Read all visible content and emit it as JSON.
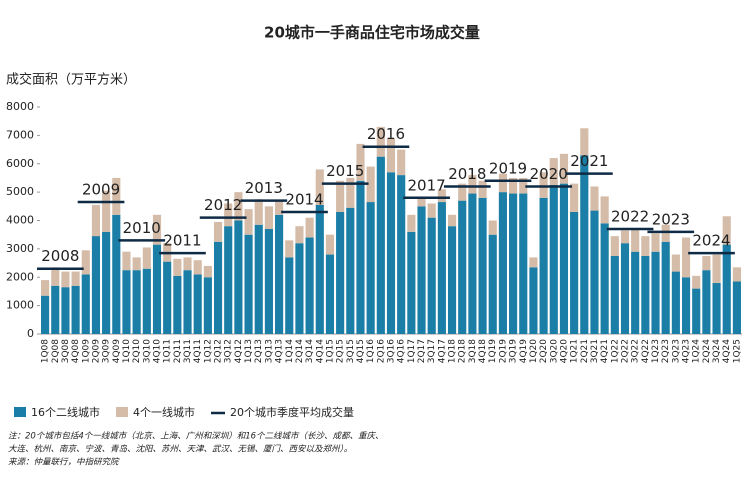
{
  "chart_data": {
    "type": "bar",
    "stacked": true,
    "title": "20城市一手商品住宅市场成交量",
    "y_label": "成交面积（万平方米）",
    "categories": [
      "1Q08",
      "2Q08",
      "3Q08",
      "4Q08",
      "1Q09",
      "2Q09",
      "3Q09",
      "4Q09",
      "1Q10",
      "2Q10",
      "3Q10",
      "4Q10",
      "1Q11",
      "2Q11",
      "3Q11",
      "4Q11",
      "1Q12",
      "2Q12",
      "3Q12",
      "4Q12",
      "1Q13",
      "2Q13",
      "3Q13",
      "4Q13",
      "1Q14",
      "2Q14",
      "3Q14",
      "4Q14",
      "1Q15",
      "2Q15",
      "3Q15",
      "4Q15",
      "1Q16",
      "2Q16",
      "3Q16",
      "4Q16",
      "1Q17",
      "2Q17",
      "3Q17",
      "4Q17",
      "1Q18",
      "2Q18",
      "3Q18",
      "4Q18",
      "1Q19",
      "2Q19",
      "3Q19",
      "4Q19",
      "1Q20",
      "2Q20",
      "3Q20",
      "4Q20",
      "1Q21",
      "2Q21",
      "3Q21",
      "4Q21",
      "1Q22",
      "2Q22",
      "3Q22",
      "4Q22",
      "1Q23",
      "2Q23",
      "3Q23",
      "4Q23",
      "1Q24",
      "2Q24",
      "3Q24",
      "4Q24",
      "1Q25"
    ],
    "series": [
      {
        "name": "16个二线城市",
        "color": "#1a7ea6",
        "values": [
          1350,
          1700,
          1650,
          1700,
          2100,
          3450,
          3600,
          4200,
          2250,
          2250,
          2300,
          3150,
          2550,
          2050,
          2250,
          2100,
          2000,
          3250,
          3800,
          4000,
          3500,
          3850,
          3700,
          4200,
          2700,
          3200,
          3400,
          4550,
          2800,
          4300,
          4450,
          5400,
          4650,
          6250,
          5700,
          5600,
          3600,
          4500,
          4100,
          4650,
          3800,
          4700,
          4950,
          4800,
          3500,
          5000,
          4950,
          4950,
          2350,
          4800,
          5250,
          5300,
          4300,
          6300,
          4350,
          3900,
          2750,
          3200,
          2900,
          2750,
          2900,
          3250,
          2200,
          2000,
          1600,
          2250,
          1800,
          3150,
          1850
        ]
      },
      {
        "name": "4个一线城市",
        "color": "#d5bca9",
        "values": [
          550,
          650,
          550,
          500,
          850,
          1100,
          1450,
          1300,
          650,
          450,
          750,
          1050,
          650,
          600,
          450,
          500,
          400,
          700,
          800,
          1000,
          900,
          900,
          800,
          500,
          600,
          600,
          700,
          1250,
          700,
          1100,
          1050,
          1300,
          1250,
          1050,
          1200,
          900,
          600,
          300,
          500,
          450,
          400,
          600,
          650,
          600,
          500,
          650,
          550,
          550,
          350,
          900,
          950,
          1050,
          1000,
          950,
          850,
          950,
          700,
          450,
          800,
          700,
          650,
          600,
          600,
          1400,
          450,
          500,
          1000,
          1000,
          500
        ]
      }
    ],
    "averages": {
      "name": "20个城市季度平均成交量",
      "color": "#0e2a44",
      "labels": [
        "2008",
        "2009",
        "2010",
        "2011",
        "2012",
        "2013",
        "2014",
        "2015",
        "2016",
        "2017",
        "2018",
        "2019",
        "2020",
        "2021",
        "2022",
        "2023",
        "2024"
      ],
      "values": [
        2300,
        4650,
        3300,
        2850,
        4100,
        4700,
        4300,
        5300,
        6600,
        4800,
        5200,
        5400,
        5200,
        5650,
        3700,
        3600,
        2850
      ]
    },
    "ylim": [
      0,
      8000
    ],
    "yticks": [
      0,
      1000,
      2000,
      3000,
      4000,
      5000,
      6000,
      7000,
      8000
    ],
    "notes": [
      "注：20个城市包括4个一线城市（北京、上海、广州和深圳）和16个二线城市（长沙、成都、重庆、",
      "大连、杭州、南京、宁波、青岛、沈阳、苏州、天津、武汉、无锡、厦门、西安以及郑州）。",
      "来源：仲量联行，中指研究院"
    ]
  }
}
